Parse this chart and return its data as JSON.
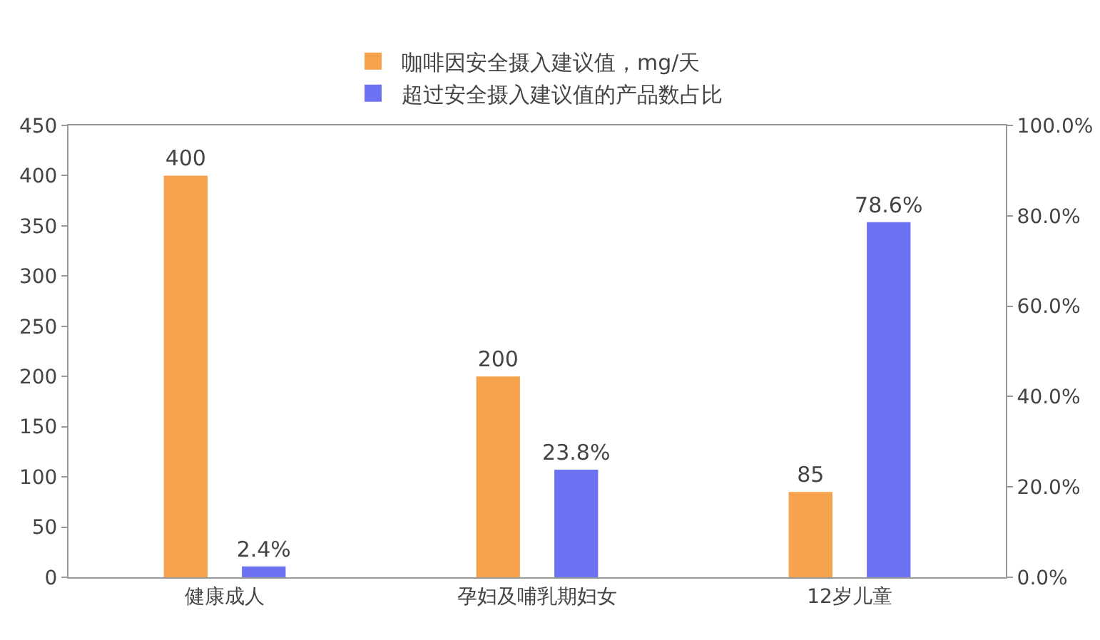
{
  "chart_data": {
    "type": "bar",
    "categories": [
      "健康成人",
      "孕妇及哺乳期妇女",
      "12岁儿童"
    ],
    "series": [
      {
        "name": "咖啡因安全摄入建议值，mg/天",
        "color": "#f7a24c",
        "values": [
          400,
          200,
          85
        ],
        "value_labels": [
          "400",
          "200",
          "85"
        ]
      },
      {
        "name": "超过安全摄入建议值的产品数占比",
        "color": "#6c72f2",
        "values": [
          2.4,
          23.8,
          78.6
        ],
        "value_labels": [
          "2.4%",
          "23.8%",
          "78.6%"
        ],
        "axis": "y2"
      }
    ],
    "ylim": [
      0,
      450
    ],
    "yticks": [
      0,
      50,
      100,
      150,
      200,
      250,
      300,
      350,
      400,
      450
    ],
    "y2lim": [
      0,
      100
    ],
    "y2ticks": [
      {
        "value": 0,
        "label": "0.0%"
      },
      {
        "value": 20,
        "label": "20.0%"
      },
      {
        "value": 40,
        "label": "40.0%"
      },
      {
        "value": 60,
        "label": "60.0%"
      },
      {
        "value": 80,
        "label": "80.0%"
      },
      {
        "value": 100,
        "label": "100.0%"
      }
    ],
    "grid": false,
    "legend": "top"
  }
}
